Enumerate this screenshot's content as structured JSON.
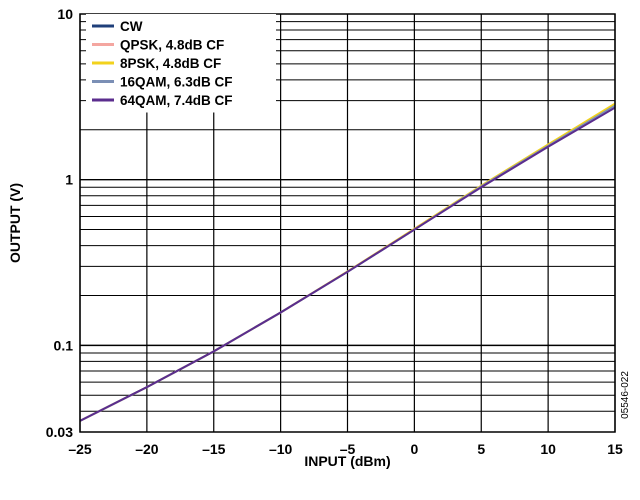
{
  "chart_data": {
    "type": "line",
    "xlabel": "INPUT (dBm)",
    "ylabel": "OUTPUT (V)",
    "xlim": [
      -25,
      15
    ],
    "ylim": [
      0.03,
      10
    ],
    "yscale": "log",
    "x_ticks": [
      -25,
      -20,
      -15,
      -10,
      -5,
      0,
      5,
      10,
      15
    ],
    "x_tick_labels": [
      "–25",
      "–20",
      "–15",
      "–10",
      "–5",
      "0",
      "5",
      "10",
      "15"
    ],
    "y_ticks": [
      0.03,
      0.1,
      1,
      10
    ],
    "y_tick_labels": [
      "0.03",
      "0.1",
      "1",
      "10"
    ],
    "grid": true,
    "legend_position": "top-left",
    "figure_id": "05546-022",
    "series": [
      {
        "name": "CW",
        "color": "#1f3f7a",
        "x": [
          -25,
          -20,
          -15,
          -10,
          -5,
          0,
          5,
          10,
          15
        ],
        "y": [
          0.035,
          0.056,
          0.092,
          0.158,
          0.278,
          0.5,
          0.91,
          1.6,
          2.78
        ]
      },
      {
        "name": "QPSK, 4.8dB CF",
        "color": "#f4a6a0",
        "x": [
          -25,
          -20,
          -15,
          -10,
          -5,
          0,
          5,
          10,
          15
        ],
        "y": [
          0.035,
          0.056,
          0.092,
          0.158,
          0.279,
          0.505,
          0.92,
          1.62,
          2.85
        ]
      },
      {
        "name": "8PSK, 4.8dB CF",
        "color": "#f2d21c",
        "x": [
          -25,
          -20,
          -15,
          -10,
          -5,
          0,
          5,
          10,
          15
        ],
        "y": [
          0.035,
          0.056,
          0.092,
          0.158,
          0.279,
          0.505,
          0.92,
          1.63,
          2.88
        ]
      },
      {
        "name": "16QAM, 6.3dB CF",
        "color": "#7b8fb5",
        "x": [
          -25,
          -20,
          -15,
          -10,
          -5,
          0,
          5,
          10,
          15
        ],
        "y": [
          0.035,
          0.056,
          0.092,
          0.158,
          0.278,
          0.5,
          0.91,
          1.6,
          2.8
        ]
      },
      {
        "name": "64QAM, 7.4dB CF",
        "color": "#5b2d8e",
        "x": [
          -25,
          -20,
          -15,
          -10,
          -5,
          0,
          5,
          10,
          15
        ],
        "y": [
          0.035,
          0.056,
          0.092,
          0.158,
          0.278,
          0.5,
          0.9,
          1.58,
          2.72
        ]
      }
    ]
  }
}
